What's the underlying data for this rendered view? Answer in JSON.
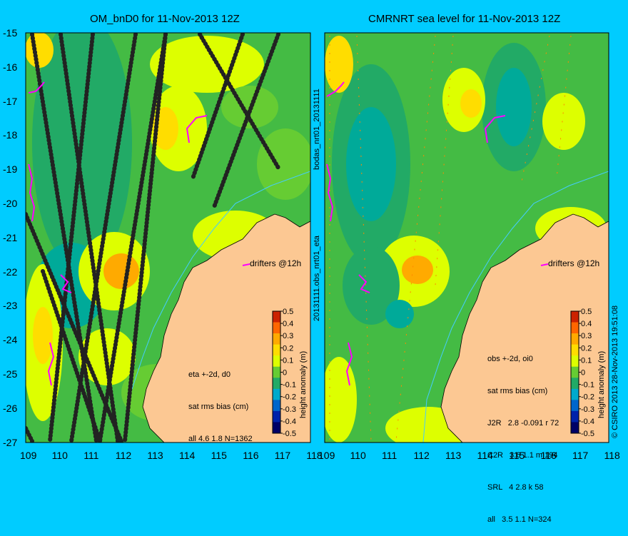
{
  "left_map": {
    "title": "OM_bnD0 for 11-Nov-2013 12Z",
    "stats": [
      "eta +-2d, d0",
      "sat rms bias (cm)",
      "all 4.6 1.8 N=1362"
    ],
    "drifters_label": "drifters @12h"
  },
  "right_map": {
    "title": "CMRNRT sea level  for 11-Nov-2013 12Z",
    "stats": [
      "obs +-2d, oi0",
      "sat rms bias (cm)",
      "J2R   2.8 -0.091 r 72",
      "C2R   3.6 1.1 m 194",
      "SRL   4 2.8 k 58",
      "all   3.5 1.1 N=324"
    ],
    "drifters_label": "drifters @12h"
  },
  "axes": {
    "lat_ticks": [
      "-15",
      "-16",
      "-17",
      "-18",
      "-19",
      "-20",
      "-21",
      "-22",
      "-23",
      "-24",
      "-25",
      "-26",
      "-27"
    ],
    "left_lon_ticks": [
      "109",
      "110",
      "111",
      "112",
      "113",
      "114",
      "115",
      "116",
      "117",
      "118"
    ],
    "right_lon_ticks": [
      "109",
      "110",
      "111",
      "112",
      "113",
      "114",
      "115",
      "116",
      "117",
      "118"
    ]
  },
  "colorbar": {
    "label": "height anomaly (m)",
    "ticks": [
      "0.5",
      "0.4",
      "0.3",
      "0.2",
      "0.1",
      "0",
      "-0.1",
      "-0.2",
      "-0.3",
      "-0.4",
      "-0.5"
    ],
    "colors": [
      "#cc2200",
      "#ff6600",
      "#ffaa00",
      "#ffdd00",
      "#ddff00",
      "#66cc33",
      "#22aa66",
      "#00aacc",
      "#0066cc",
      "#0022aa",
      "#000066"
    ]
  },
  "side_text": {
    "middle_top": "bodas_nrt01_20131111",
    "middle_bottom": "20131111.obs_nrt01_eta",
    "right_edge": "© CSIRO 2013   28-Nov-2013 19:51:08"
  },
  "colors": {
    "background": "#00ccff",
    "land": "#fcc893",
    "ocean_base": "#44bb44",
    "drifter": "#ff00ff"
  }
}
